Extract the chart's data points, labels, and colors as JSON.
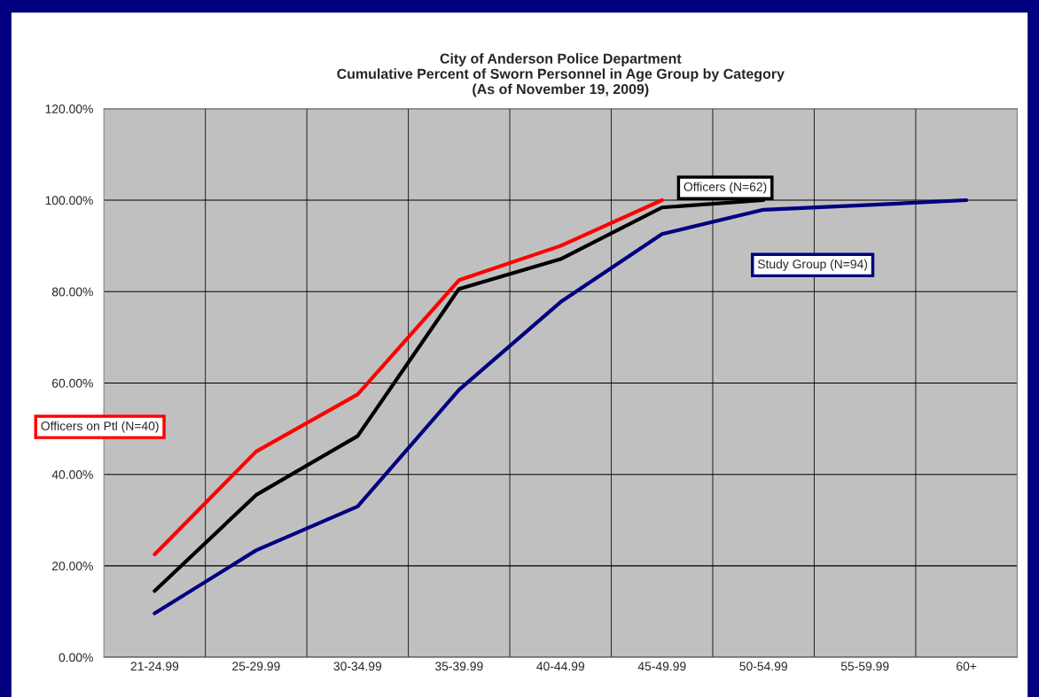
{
  "chart_data": {
    "type": "line",
    "title": "City of Anderson Police Department\nCumulative Percent of Sworn Personnel in Age Group by Category\n(As of November 19, 2009)",
    "categories": [
      "21-24.99",
      "25-29.99",
      "30-34.99",
      "35-39.99",
      "40-44.99",
      "45-49.99",
      "50-54.99",
      "55-59.99",
      "60+"
    ],
    "series": [
      {
        "name": "Officers on Ptl (N=40)",
        "color": "#ff0000",
        "values": [
          22.5,
          45.0,
          57.5,
          82.5,
          90.0,
          100.0,
          null,
          null,
          null
        ]
      },
      {
        "name": "Officers (N=62)",
        "color": "#000000",
        "values": [
          14.5,
          35.5,
          48.4,
          80.6,
          87.1,
          98.4,
          100.0,
          null,
          null
        ]
      },
      {
        "name": "Study Group (N=94)",
        "color": "#000080",
        "values": [
          9.6,
          23.4,
          33.0,
          58.5,
          77.7,
          92.6,
          97.9,
          98.9,
          100.0
        ]
      }
    ],
    "ylim": [
      0,
      120
    ],
    "yticks": [
      {
        "value": 0,
        "label": "0.00%"
      },
      {
        "value": 20,
        "label": "20.00%"
      },
      {
        "value": 40,
        "label": "40.00%"
      },
      {
        "value": 60,
        "label": "60.00%"
      },
      {
        "value": 80,
        "label": "80.00%"
      },
      {
        "value": 100,
        "label": "100.00%"
      },
      {
        "value": 120,
        "label": "120.00%"
      }
    ],
    "grid": true,
    "marker": "none",
    "line_style": "solid"
  }
}
